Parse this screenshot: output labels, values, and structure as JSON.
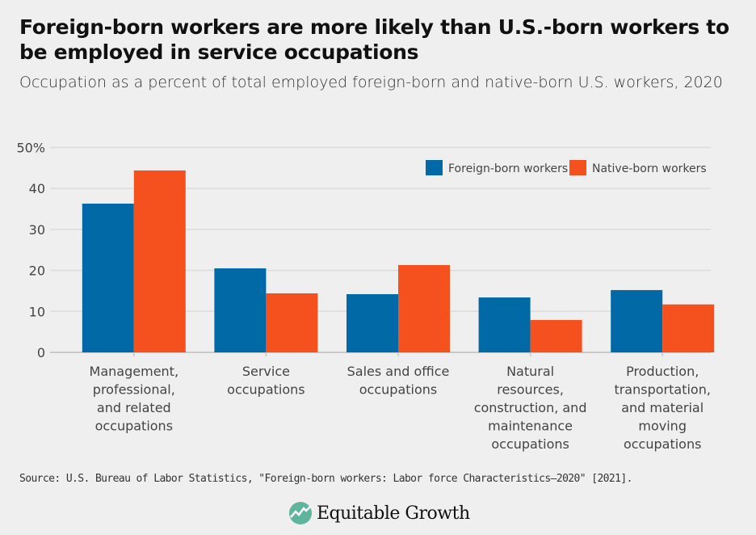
{
  "title": "Foreign-born workers are more likely than U.S.-born workers to be employed in service occupations",
  "subtitle": "Occupation as a percent of total employed foreign-born and native-born U.S. workers, 2020",
  "source": "Source: U.S. Bureau of Labor Statistics, \"Foreign-born workers: Labor force Characteristics—2020\" [2021].",
  "logo_text": "Equitable Growth",
  "colors": {
    "foreign": "#0069a6",
    "native": "#f4511e"
  },
  "chart_data": {
    "type": "bar",
    "categories": [
      [
        "Management,",
        "professional,",
        "and related",
        "occupations"
      ],
      [
        "Service",
        "occupations"
      ],
      [
        "Sales and office",
        "occupations"
      ],
      [
        "Natural",
        "resources,",
        "construction, and",
        "maintenance",
        "occupations"
      ],
      [
        "Production,",
        "transportation,",
        "and material",
        "moving",
        "occupations"
      ]
    ],
    "series": [
      {
        "name": "Foreign-born workers",
        "values": [
          36.3,
          20.5,
          14.2,
          13.4,
          15.2
        ]
      },
      {
        "name": "Native-born workers",
        "values": [
          44.4,
          14.4,
          21.3,
          7.9,
          11.7
        ]
      }
    ],
    "ylim": [
      0,
      50
    ],
    "yticks": [
      0,
      10,
      20,
      30,
      40,
      50
    ],
    "ytick_labels": [
      "0",
      "10",
      "20",
      "30",
      "40",
      "50%"
    ],
    "grid": true,
    "legend": "top-right",
    "xlabel": "",
    "ylabel": ""
  }
}
